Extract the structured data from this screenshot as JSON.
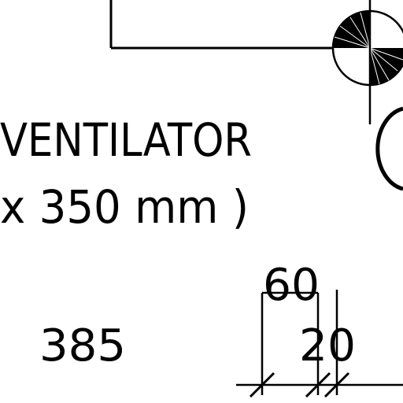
{
  "drawing": {
    "label_line1": "VENTILATOR",
    "label_line2": "x 350 mm )",
    "dim_385": "385",
    "dim_60": "60",
    "dim_20": "20"
  },
  "colors": {
    "ink": "#000000",
    "paper": "#ffffff"
  }
}
